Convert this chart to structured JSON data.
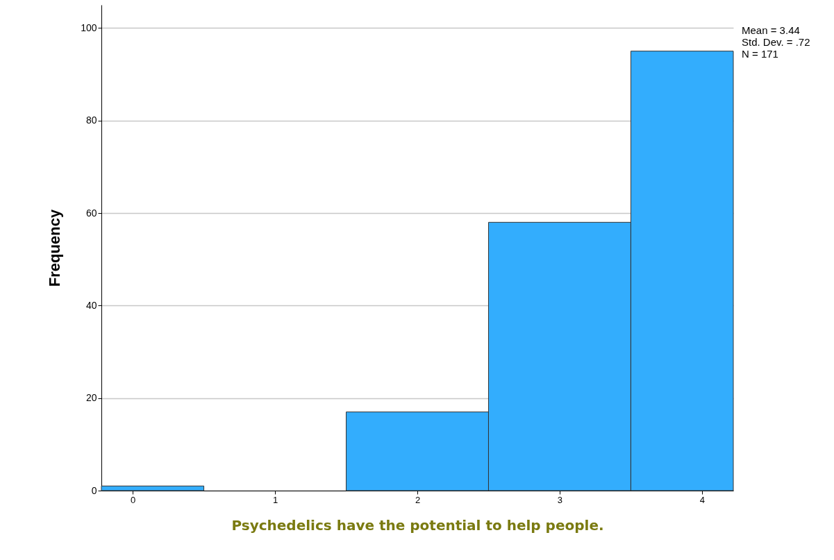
{
  "chart_data": {
    "type": "histogram",
    "xlabel": "Psychedelics have the potential to help people.",
    "ylabel": "Frequency",
    "bins": [
      -0.22,
      0.5,
      1.5,
      2.5,
      3.5,
      4.22
    ],
    "values": [
      1,
      0,
      17,
      58,
      95
    ],
    "color": "#33adfd",
    "xlim": [
      -0.22,
      4.22
    ],
    "xticks": [
      0,
      1,
      2,
      3,
      4
    ],
    "ylim": [
      0,
      105
    ],
    "yticks": [
      0,
      20,
      40,
      60,
      80,
      100
    ],
    "grid": "y",
    "annotations": [
      "Mean = 3.44",
      "Std. Dev. = .72",
      "N = 171"
    ]
  }
}
